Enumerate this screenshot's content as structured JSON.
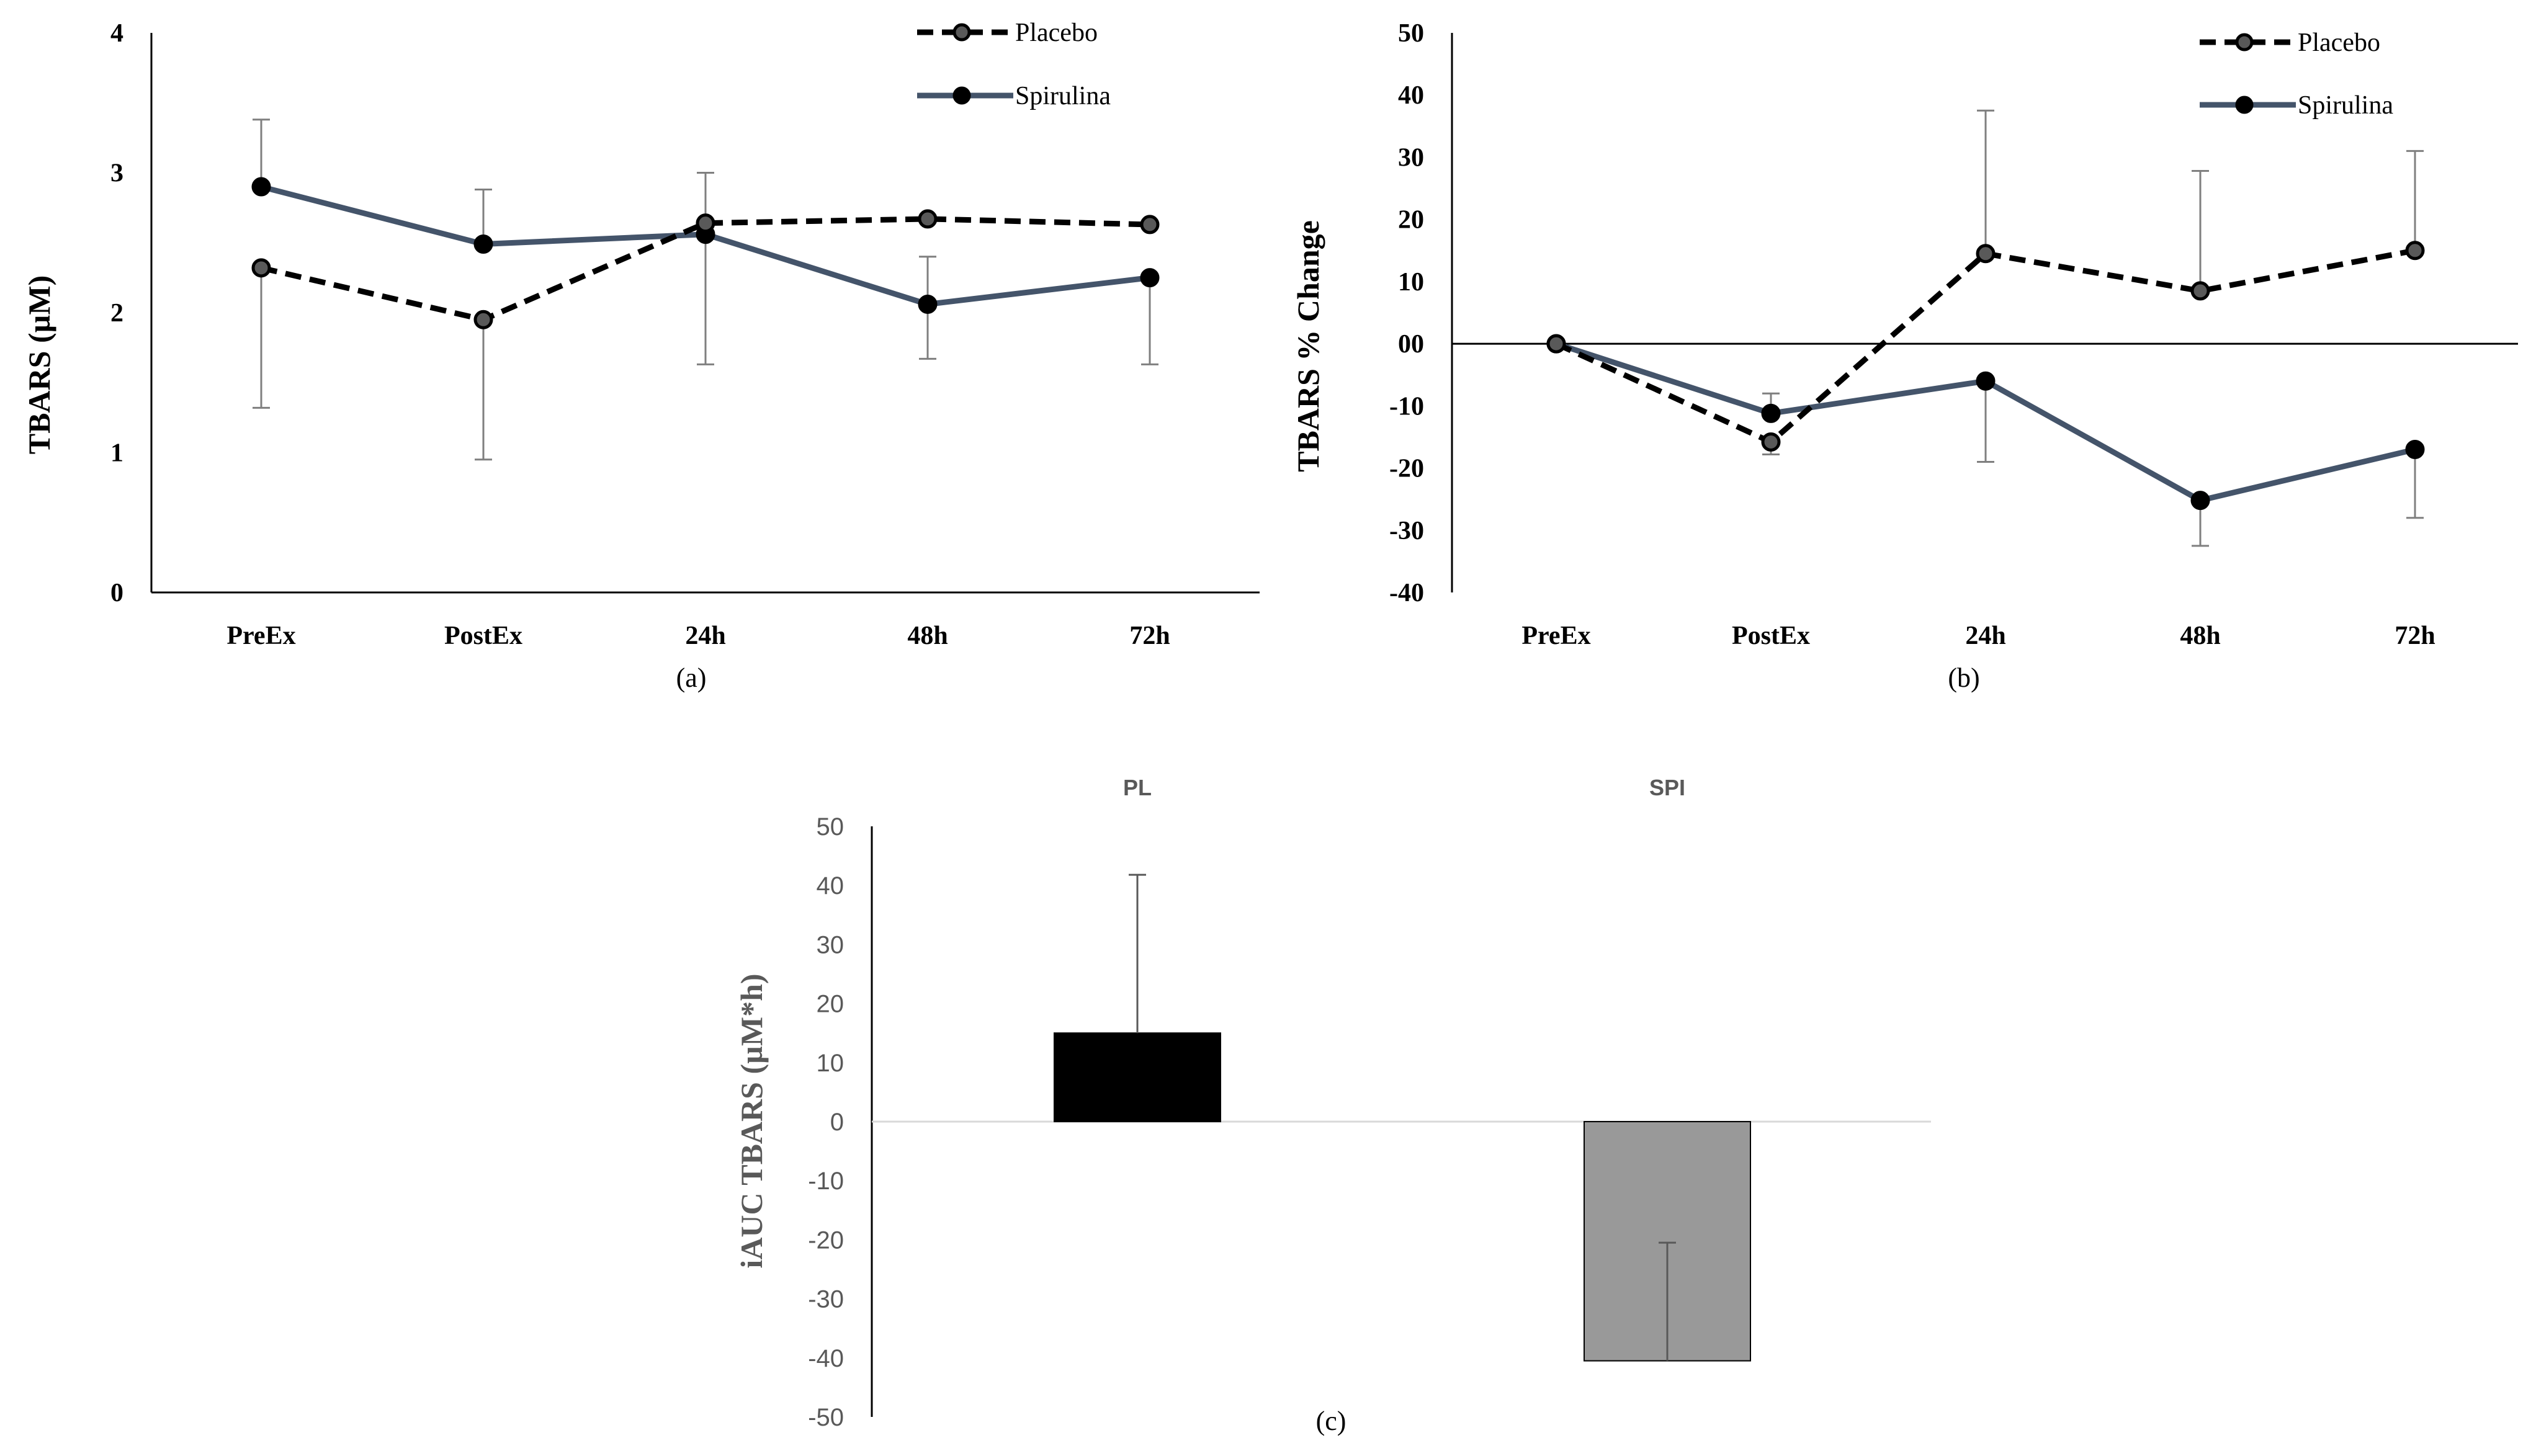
{
  "chart_data": [
    {
      "type": "line",
      "panel_label": "(a)",
      "ylabel": "TBARS (µM)",
      "xlabel": "",
      "categories": [
        "PreEx",
        "PostEx",
        "24h",
        "48h",
        "72h"
      ],
      "ylim": [
        0,
        4
      ],
      "yticks": [
        "0",
        "1",
        "2",
        "3",
        "4"
      ],
      "series": [
        {
          "name": "Placebo",
          "style": "dashed",
          "color": "#000000",
          "marker_fill": "#595959",
          "values": [
            2.32,
            1.95,
            2.64,
            2.67,
            2.63
          ],
          "error_upper": [
            null,
            null,
            null,
            null,
            null
          ],
          "error_lower": [
            1.32,
            0.95,
            null,
            null,
            null
          ]
        },
        {
          "name": "Spirulina",
          "style": "solid",
          "color": "#44546A",
          "marker_fill": "#000000",
          "values": [
            2.9,
            2.49,
            2.56,
            2.06,
            2.25
          ],
          "error_upper": [
            3.38,
            2.88,
            3.0,
            2.4,
            null
          ],
          "error_lower": [
            null,
            null,
            1.63,
            1.67,
            1.63
          ]
        }
      ]
    },
    {
      "type": "line",
      "panel_label": "(b)",
      "ylabel": "TBARS % Change",
      "xlabel": "",
      "categories": [
        "PreEx",
        "PostEx",
        "24h",
        "48h",
        "72h"
      ],
      "ylim": [
        -40,
        50
      ],
      "yticks": [
        "-40",
        "-30",
        "-20",
        "-10",
        "00",
        "10",
        "20",
        "30",
        "40",
        "50"
      ],
      "series": [
        {
          "name": "Placebo",
          "style": "dashed",
          "color": "#000000",
          "marker_fill": "#595959",
          "values": [
            0,
            -15.8,
            14.5,
            8.5,
            15.0
          ],
          "error_upper": [
            null,
            null,
            37.5,
            27.8,
            31.0
          ],
          "error_lower": [
            null,
            -17.8,
            null,
            null,
            null
          ]
        },
        {
          "name": "Spirulina",
          "style": "solid",
          "color": "#44546A",
          "marker_fill": "#000000",
          "values": [
            0,
            -11.2,
            -6.0,
            -25.2,
            -17.0
          ],
          "error_upper": [
            null,
            -8.0,
            null,
            null,
            null
          ],
          "error_lower": [
            null,
            null,
            -19.0,
            -32.5,
            -28.0
          ]
        }
      ]
    },
    {
      "type": "bar",
      "panel_label": "(c)",
      "ylabel": "iAUC TBARS (µM*h)",
      "xlabel": "",
      "categories": [
        "PL",
        "SPI"
      ],
      "ylim": [
        -50,
        50
      ],
      "yticks": [
        "-50",
        "-40",
        "-30",
        "-20",
        "-10",
        "0",
        "10",
        "20",
        "30",
        "40",
        "50"
      ],
      "values": [
        15,
        -40.5
      ],
      "colors": [
        "#000000",
        "#999999"
      ],
      "error_upper": [
        41.8,
        null
      ],
      "error_lower": [
        null,
        -20.5
      ]
    }
  ]
}
